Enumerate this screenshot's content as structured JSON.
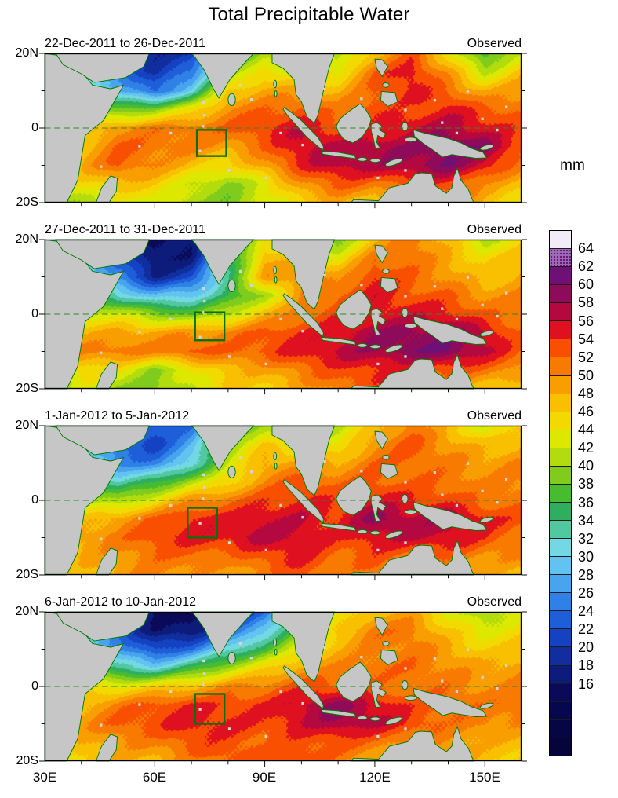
{
  "title": "Total Precipitable Water",
  "panels": [
    {
      "date_range": "22-Dec-2011 to 26-Dec-2011",
      "source_label": "Observed"
    },
    {
      "date_range": "27-Dec-2011 to 31-Dec-2011",
      "source_label": "Observed"
    },
    {
      "date_range": "1-Jan-2012 to 5-Jan-2012",
      "source_label": "Observed"
    },
    {
      "date_range": "6-Jan-2012 to 10-Jan-2012",
      "source_label": "Observed"
    }
  ],
  "axes": {
    "y_tick_labels": [
      "20N",
      "0",
      "20S"
    ],
    "x_tick_labels": [
      "30E",
      "60E",
      "90E",
      "120E",
      "150E"
    ]
  },
  "colorbar": {
    "unit": "mm",
    "tick_labels": [
      "64",
      "62",
      "60",
      "58",
      "56",
      "54",
      "52",
      "50",
      "48",
      "46",
      "44",
      "42",
      "40",
      "38",
      "36",
      "34",
      "32",
      "30",
      "28",
      "26",
      "24",
      "22",
      "20",
      "18",
      "16"
    ],
    "segments": [
      {
        "min": 8,
        "color": "#05053c"
      },
      {
        "min": 10,
        "color": "#060645"
      },
      {
        "min": 12,
        "color": "#07074e"
      },
      {
        "min": 14,
        "color": "#0a0a58"
      },
      {
        "min": 16,
        "color": "#0d1c7a"
      },
      {
        "min": 18,
        "color": "#102e9e"
      },
      {
        "min": 20,
        "color": "#1542c2"
      },
      {
        "min": 22,
        "color": "#1f5ed9"
      },
      {
        "min": 24,
        "color": "#2f80e7"
      },
      {
        "min": 26,
        "color": "#49a4ee"
      },
      {
        "min": 28,
        "color": "#62c3f0"
      },
      {
        "min": 30,
        "color": "#74d8e4"
      },
      {
        "min": 32,
        "color": "#52c8a0"
      },
      {
        "min": 34,
        "color": "#2fae60"
      },
      {
        "min": 36,
        "color": "#48bc30"
      },
      {
        "min": 38,
        "color": "#80cc1c"
      },
      {
        "min": 40,
        "color": "#b2dc0e"
      },
      {
        "min": 42,
        "color": "#dce800"
      },
      {
        "min": 44,
        "color": "#f2da00"
      },
      {
        "min": 46,
        "color": "#f8c000"
      },
      {
        "min": 48,
        "color": "#f89e00"
      },
      {
        "min": 50,
        "color": "#f87a00"
      },
      {
        "min": 52,
        "color": "#f85000"
      },
      {
        "min": 54,
        "color": "#df1020"
      },
      {
        "min": 56,
        "color": "#b40940"
      },
      {
        "min": 58,
        "color": "#8e0a5a"
      },
      {
        "min": 60,
        "color": "#6e1076"
      },
      {
        "min": 62,
        "color": "#9a6cb4"
      },
      {
        "min": 64,
        "color": "#f2ecf8"
      }
    ]
  },
  "chart_data": {
    "type": "heatmap",
    "title": "Total Precipitable Water",
    "units": "mm",
    "lon_range": [
      30,
      160
    ],
    "lat_range": [
      -20,
      20
    ],
    "lon_grid": [
      30,
      40,
      50,
      60,
      70,
      80,
      90,
      100,
      110,
      120,
      130,
      140,
      150,
      160
    ],
    "lat_grid": [
      20,
      15,
      10,
      5,
      0,
      -5,
      -10,
      -15,
      -20
    ],
    "value_range": [
      8,
      66
    ],
    "legend_position": "right",
    "panels": [
      {
        "date_range": "22-Dec-2011 to 26-Dec-2011",
        "source": "Observed",
        "box": {
          "lon": [
            71.5,
            79.5
          ],
          "lat": [
            -0.5,
            -7.5
          ]
        },
        "grid": [
          [
            30,
            26,
            22,
            18,
            20,
            34,
            40,
            38,
            40,
            48,
            54,
            46,
            36,
            42
          ],
          [
            34,
            30,
            24,
            18,
            24,
            40,
            46,
            44,
            44,
            52,
            56,
            50,
            42,
            46
          ],
          [
            40,
            34,
            28,
            22,
            30,
            46,
            50,
            50,
            48,
            52,
            54,
            52,
            48,
            50
          ],
          [
            44,
            40,
            38,
            40,
            44,
            50,
            52,
            54,
            52,
            54,
            52,
            54,
            52,
            52
          ],
          [
            46,
            44,
            50,
            52,
            52,
            52,
            54,
            56,
            54,
            54,
            56,
            56,
            54,
            52
          ],
          [
            46,
            46,
            52,
            52,
            52,
            50,
            52,
            56,
            56,
            58,
            58,
            60,
            58,
            52
          ],
          [
            44,
            48,
            52,
            50,
            48,
            46,
            50,
            54,
            56,
            56,
            58,
            60,
            56,
            50
          ],
          [
            42,
            46,
            48,
            46,
            42,
            40,
            44,
            50,
            52,
            50,
            52,
            54,
            50,
            48
          ],
          [
            40,
            42,
            44,
            44,
            40,
            38,
            42,
            46,
            48,
            46,
            48,
            50,
            48,
            46
          ]
        ]
      },
      {
        "date_range": "27-Dec-2011 to 31-Dec-2011",
        "source": "Observed",
        "box": {
          "lon": [
            71,
            79
          ],
          "lat": [
            0.5,
            -7
          ]
        },
        "grid": [
          [
            28,
            26,
            20,
            16,
            16,
            30,
            44,
            42,
            40,
            48,
            52,
            46,
            40,
            44
          ],
          [
            32,
            28,
            22,
            16,
            18,
            34,
            48,
            46,
            44,
            52,
            52,
            48,
            44,
            46
          ],
          [
            38,
            32,
            24,
            18,
            22,
            36,
            50,
            50,
            48,
            54,
            52,
            50,
            46,
            48
          ],
          [
            42,
            38,
            32,
            28,
            30,
            36,
            42,
            50,
            52,
            54,
            52,
            52,
            50,
            50
          ],
          [
            46,
            44,
            44,
            40,
            38,
            42,
            48,
            52,
            54,
            54,
            54,
            54,
            52,
            52
          ],
          [
            46,
            48,
            50,
            50,
            50,
            50,
            52,
            54,
            56,
            58,
            58,
            58,
            56,
            52
          ],
          [
            44,
            50,
            52,
            52,
            54,
            52,
            52,
            54,
            56,
            58,
            60,
            60,
            56,
            52
          ],
          [
            42,
            46,
            44,
            40,
            44,
            48,
            48,
            50,
            52,
            54,
            54,
            54,
            52,
            50
          ],
          [
            40,
            44,
            40,
            38,
            42,
            46,
            46,
            48,
            50,
            52,
            52,
            50,
            48,
            46
          ]
        ]
      },
      {
        "date_range": "1-Jan-2012 to 5-Jan-2012",
        "source": "Observed",
        "box": {
          "lon": [
            69,
            77
          ],
          "lat": [
            -2,
            -10
          ]
        },
        "grid": [
          [
            30,
            26,
            22,
            22,
            24,
            36,
            42,
            40,
            42,
            46,
            50,
            46,
            42,
            46
          ],
          [
            34,
            28,
            24,
            22,
            28,
            40,
            46,
            44,
            44,
            50,
            52,
            48,
            46,
            48
          ],
          [
            38,
            32,
            26,
            26,
            32,
            42,
            48,
            48,
            48,
            52,
            52,
            50,
            48,
            50
          ],
          [
            42,
            38,
            32,
            36,
            42,
            46,
            50,
            52,
            50,
            52,
            52,
            52,
            50,
            50
          ],
          [
            44,
            42,
            40,
            44,
            50,
            52,
            54,
            54,
            52,
            54,
            54,
            54,
            52,
            52
          ],
          [
            46,
            48,
            50,
            52,
            54,
            54,
            56,
            56,
            54,
            58,
            56,
            58,
            56,
            54
          ],
          [
            46,
            50,
            52,
            54,
            54,
            54,
            56,
            56,
            54,
            56,
            56,
            56,
            54,
            52
          ],
          [
            44,
            48,
            50,
            52,
            52,
            50,
            52,
            54,
            52,
            54,
            52,
            52,
            50,
            50
          ],
          [
            42,
            46,
            48,
            50,
            50,
            48,
            50,
            52,
            50,
            52,
            50,
            50,
            48,
            46
          ]
        ]
      },
      {
        "date_range": "6-Jan-2012 to 10-Jan-2012",
        "source": "Observed",
        "box": {
          "lon": [
            71,
            79
          ],
          "lat": [
            -2,
            -10
          ]
        },
        "grid": [
          [
            28,
            26,
            22,
            16,
            14,
            18,
            24,
            34,
            42,
            46,
            48,
            44,
            40,
            44
          ],
          [
            32,
            28,
            24,
            16,
            16,
            22,
            30,
            40,
            46,
            50,
            50,
            46,
            44,
            46
          ],
          [
            36,
            32,
            28,
            22,
            24,
            30,
            36,
            44,
            48,
            50,
            50,
            48,
            46,
            48
          ],
          [
            42,
            38,
            34,
            32,
            36,
            40,
            44,
            48,
            50,
            52,
            52,
            50,
            48,
            50
          ],
          [
            44,
            44,
            44,
            46,
            48,
            50,
            50,
            52,
            52,
            52,
            52,
            52,
            50,
            50
          ],
          [
            46,
            48,
            50,
            52,
            54,
            54,
            54,
            56,
            58,
            56,
            54,
            54,
            52,
            52
          ],
          [
            46,
            50,
            52,
            52,
            54,
            54,
            54,
            56,
            58,
            56,
            54,
            52,
            52,
            50
          ],
          [
            44,
            48,
            50,
            50,
            52,
            52,
            52,
            54,
            54,
            52,
            50,
            50,
            48,
            48
          ],
          [
            42,
            46,
            48,
            48,
            50,
            52,
            52,
            54,
            52,
            50,
            48,
            48,
            46,
            46
          ]
        ]
      }
    ]
  }
}
